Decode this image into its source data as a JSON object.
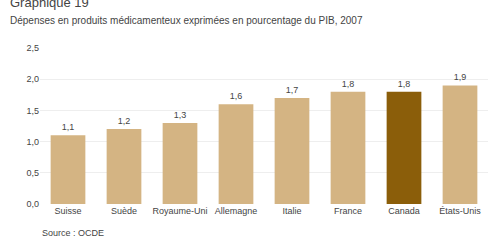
{
  "chart_data": {
    "type": "bar",
    "title": "Graphique 19",
    "subtitle": "Dépenses en produits médicamenteux exprimées en pourcentage du PIB, 2007",
    "categories": [
      "Suisse",
      "Suède",
      "Royaume-Uni",
      "Allemagne",
      "Italie",
      "France",
      "Canada",
      "États-Unis"
    ],
    "values": [
      1.1,
      1.2,
      1.3,
      1.6,
      1.7,
      1.8,
      1.8,
      1.9
    ],
    "value_labels": [
      "1,1",
      "1,2",
      "1,3",
      "1,6",
      "1,7",
      "1,8",
      "1,8",
      "1,9"
    ],
    "data_labels": true,
    "colors": [
      "#d4b483",
      "#d4b483",
      "#d4b483",
      "#d4b483",
      "#d4b483",
      "#d4b483",
      "#8B5E0A",
      "#d4b483"
    ],
    "ylim": [
      0,
      2.5
    ],
    "yticks": [
      {
        "value": 0.0,
        "label": "0,0"
      },
      {
        "value": 0.5,
        "label": "0,5"
      },
      {
        "value": 1.0,
        "label": "1,0"
      },
      {
        "value": 1.5,
        "label": "1,5"
      },
      {
        "value": 2.0,
        "label": "2,0"
      },
      {
        "value": 2.5,
        "label": "2,5"
      }
    ],
    "grid": true,
    "annotations": [
      "Source : OCDE"
    ]
  }
}
